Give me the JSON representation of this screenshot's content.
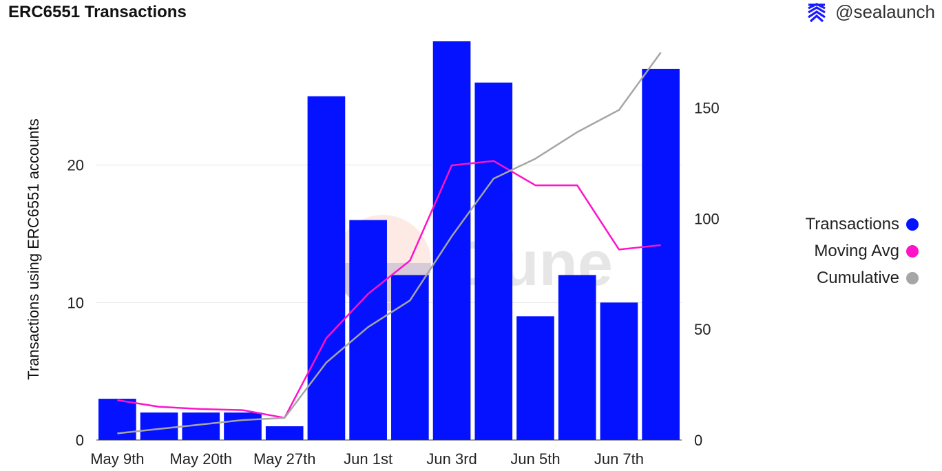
{
  "header": {
    "title": "ERC6551 Transactions",
    "handle": "@sealaunch",
    "brand_icon": "sealaunch-logo-icon"
  },
  "watermark": {
    "text": "Dune"
  },
  "legend": {
    "items": [
      {
        "label": "Transactions",
        "color": "#0512FF"
      },
      {
        "label": "Moving Avg",
        "color": "#FF12C8"
      },
      {
        "label": "Cumulative",
        "color": "#A6A6A6"
      }
    ]
  },
  "chart_data": {
    "type": "bar",
    "title": "ERC6551 Transactions",
    "ylabel": "Transactions using ERC6551 accounts",
    "y2label": "",
    "ylim": [
      0,
      29
    ],
    "y2lim": [
      0,
      180
    ],
    "yticks": [
      0,
      10,
      20
    ],
    "y2ticks": [
      0,
      50,
      100,
      150
    ],
    "xtick_labels": [
      "May 9th",
      "May 20th",
      "May 27th",
      "Jun 1st",
      "Jun 3rd",
      "Jun 5th",
      "Jun 7th"
    ],
    "xtick_index": [
      0,
      2,
      4,
      6,
      8,
      10,
      12
    ],
    "grid": true,
    "legend_position": "right",
    "series": [
      {
        "name": "Transactions",
        "type": "bar",
        "axis": "left",
        "color": "#0512FF",
        "values": [
          3,
          2,
          2,
          2,
          1,
          25,
          16,
          12,
          29,
          26,
          9,
          12,
          10,
          27
        ]
      },
      {
        "name": "Moving Avg",
        "type": "line",
        "axis": "right",
        "color": "#FF12C8",
        "values": [
          18,
          15,
          14,
          13.5,
          10,
          46,
          66,
          81,
          124,
          126,
          115,
          115,
          86,
          88
        ]
      },
      {
        "name": "Cumulative",
        "type": "line",
        "axis": "right",
        "color": "#A6A6A6",
        "values": [
          3,
          5,
          7,
          9,
          10,
          35,
          51,
          63,
          92,
          118,
          127,
          139,
          149,
          175
        ]
      }
    ]
  }
}
